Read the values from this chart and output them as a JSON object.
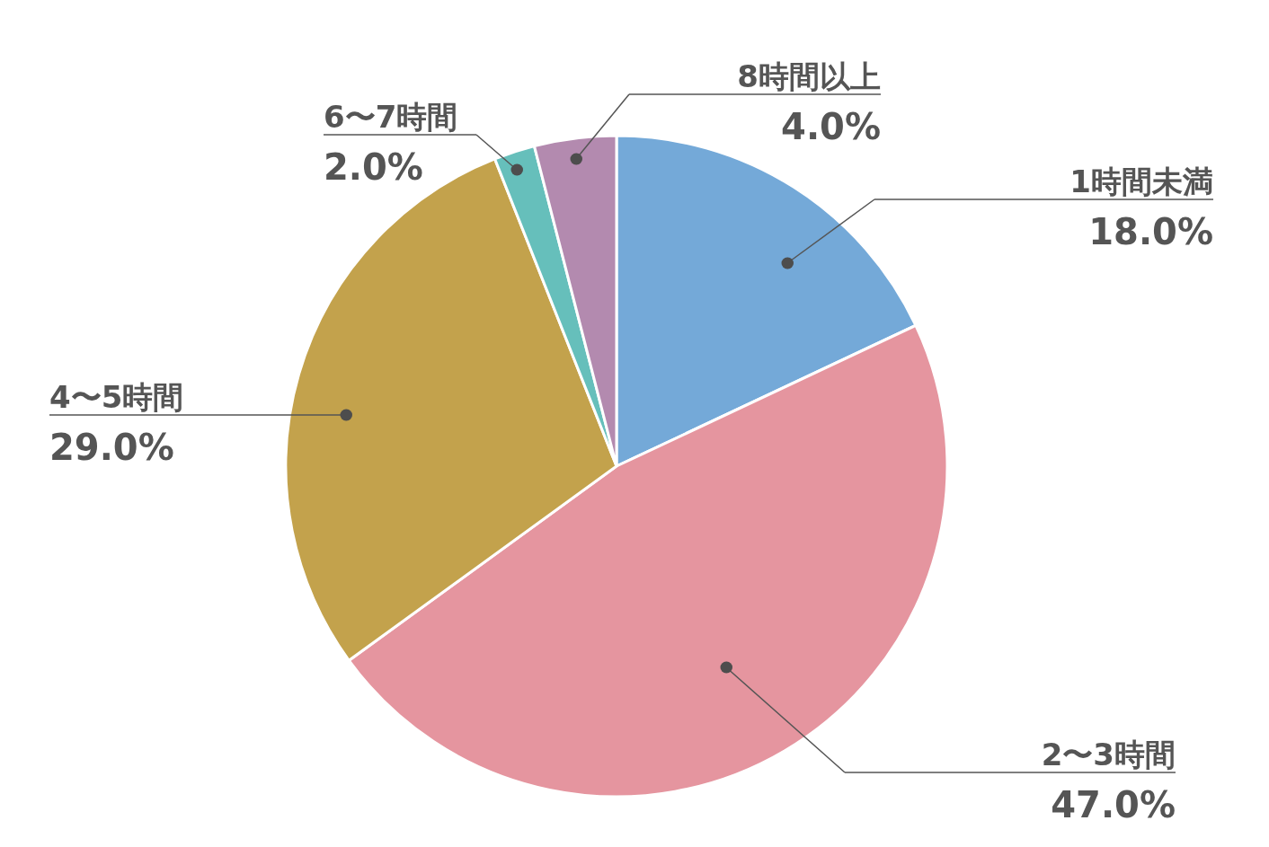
{
  "chart_data": {
    "type": "pie",
    "categories": [
      "1時間未満",
      "2〜3時間",
      "4〜5時間",
      "6〜7時間",
      "8時間以上"
    ],
    "values": [
      18.0,
      47.0,
      29.0,
      2.0,
      4.0
    ],
    "colors": [
      "#74a9d8",
      "#e5959f",
      "#c3a24c",
      "#66bfbb",
      "#b38aaf"
    ],
    "value_labels": [
      "18.0%",
      "47.0%",
      "29.0%",
      "2.0%",
      "4.0%"
    ]
  }
}
